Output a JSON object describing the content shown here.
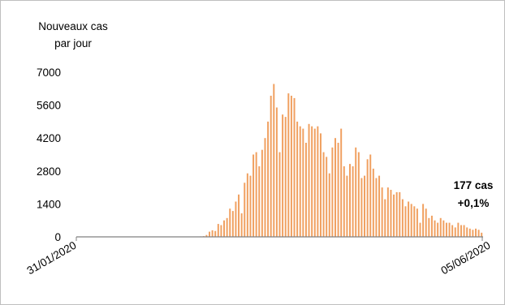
{
  "chart_data": {
    "type": "bar",
    "ylabel_line1": "Nouveaux cas",
    "ylabel_line2": "par jour",
    "x_start_label": "31/01/2020",
    "x_end_label": "05/06/2020",
    "y_ticks": [
      "0",
      "1400",
      "2800",
      "4200",
      "5600",
      "7000"
    ],
    "ylim": [
      0,
      7000
    ],
    "annotation_line1": "177 cas",
    "annotation_line2": "+0,1%",
    "bar_color": "#f0a060",
    "axis_color": "#808080",
    "grid": false,
    "legend": "none",
    "values": [
      0,
      0,
      0,
      0,
      0,
      0,
      0,
      0,
      0,
      0,
      0,
      0,
      0,
      0,
      0,
      0,
      0,
      0,
      0,
      0,
      0,
      0,
      0,
      0,
      0,
      0,
      0,
      0,
      0,
      0,
      0,
      0,
      0,
      0,
      0,
      0,
      0,
      0,
      0,
      10,
      15,
      10,
      20,
      30,
      80,
      220,
      280,
      250,
      550,
      500,
      700,
      800,
      1200,
      1100,
      1500,
      1800,
      1000,
      2300,
      2700,
      2600,
      3500,
      3600,
      3000,
      3700,
      4200,
      4900,
      6000,
      6500,
      5500,
      3600,
      5200,
      5100,
      6100,
      6000,
      5900,
      4900,
      4700,
      4600,
      4000,
      4800,
      4700,
      4600,
      4700,
      4400,
      3600,
      3400,
      2700,
      3800,
      4200,
      4000,
      4600,
      3000,
      2600,
      3100,
      3000,
      3800,
      3600,
      2500,
      2600,
      3300,
      3500,
      2900,
      2500,
      2600,
      2100,
      1600,
      2100,
      2000,
      1800,
      1900,
      1900,
      1600,
      1300,
      1500,
      1400,
      1300,
      1200,
      600,
      1400,
      1200,
      800,
      900,
      700,
      600,
      800,
      700,
      600,
      600,
      500,
      400,
      600,
      500,
      500,
      400,
      350,
      300,
      350,
      300,
      177
    ],
    "last_value": 177
  }
}
